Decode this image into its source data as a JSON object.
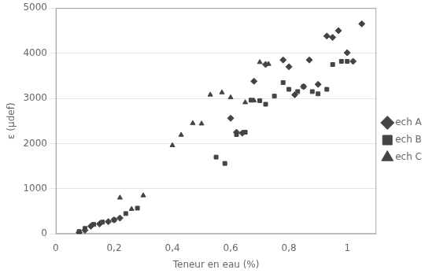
{
  "chart_data": {
    "type": "scatter",
    "xlabel": "Teneur en eau (%)",
    "ylabel": "ε (μdef)",
    "xlim": [
      0,
      1.1
    ],
    "ylim": [
      0,
      5000
    ],
    "xticks": [
      0,
      {
        "value": 0.2,
        "label": "0,2"
      },
      {
        "value": 0.4,
        "label": "0,4"
      },
      {
        "value": 0.6,
        "label": "0,6"
      },
      {
        "value": 0.8,
        "label": "0,8"
      },
      1
    ],
    "yticks": [
      0,
      1000,
      2000,
      3000,
      4000,
      5000
    ],
    "grid": "y",
    "legend": "right",
    "series": [
      {
        "name": "ech A",
        "color": "#444444",
        "marker": "diamond",
        "x": [
          0.08,
          0.1,
          0.12,
          0.15,
          0.18,
          0.2,
          0.22,
          0.6,
          0.62,
          0.64,
          0.68,
          0.72,
          0.78,
          0.8,
          0.82,
          0.85,
          0.87,
          0.9,
          0.93,
          0.95,
          0.97,
          1.0,
          1.02,
          1.05
        ],
        "values": [
          30,
          80,
          170,
          220,
          270,
          310,
          350,
          2560,
          2250,
          2230,
          3380,
          3750,
          3850,
          3700,
          3080,
          3260,
          3850,
          3310,
          4380,
          4350,
          4500,
          4010,
          3820,
          4650
        ]
      },
      {
        "name": "ech B",
        "color": "#444444",
        "marker": "square",
        "x": [
          0.08,
          0.1,
          0.13,
          0.16,
          0.2,
          0.24,
          0.28,
          0.55,
          0.58,
          0.62,
          0.65,
          0.67,
          0.7,
          0.72,
          0.75,
          0.78,
          0.8,
          0.83,
          0.85,
          0.88,
          0.9,
          0.93,
          0.95,
          0.98,
          1.0
        ],
        "values": [
          50,
          120,
          210,
          260,
          310,
          450,
          570,
          1700,
          1560,
          2200,
          2250,
          2960,
          2950,
          2870,
          3050,
          3350,
          3200,
          3150,
          3260,
          3150,
          3100,
          3200,
          3750,
          3820,
          3820
        ]
      },
      {
        "name": "ech C",
        "color": "#444444",
        "marker": "triangle",
        "x": [
          0.22,
          0.26,
          0.3,
          0.4,
          0.43,
          0.47,
          0.5,
          0.53,
          0.57,
          0.6,
          0.65,
          0.68,
          0.7,
          0.73
        ],
        "values": [
          800,
          550,
          850,
          1960,
          2190,
          2450,
          2440,
          3080,
          3130,
          3020,
          2910,
          2950,
          3800,
          3760
        ]
      }
    ]
  }
}
